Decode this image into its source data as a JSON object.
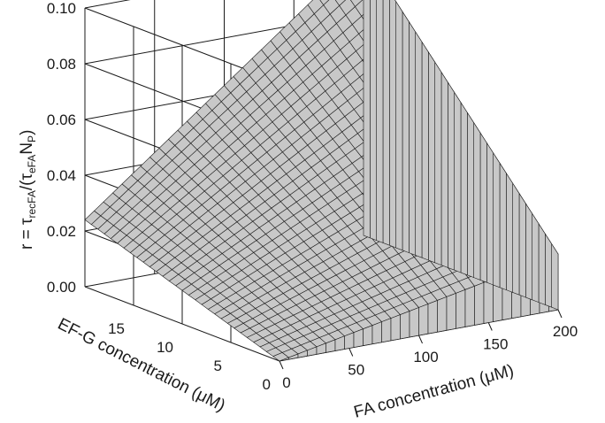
{
  "chart_data": {
    "type": "surface3d",
    "title": "",
    "x_axis": {
      "label": "FA concentration (μM)",
      "ticks": [
        "0",
        "50",
        "100",
        "150",
        "200"
      ],
      "range": [
        0,
        200
      ]
    },
    "y_axis": {
      "label": "EF-G concentration (μM)",
      "ticks": [
        "0",
        "5",
        "10",
        "15"
      ],
      "range": [
        0,
        20
      ]
    },
    "z_axis": {
      "label_main": "r = τ",
      "label_sub1": "recFA",
      "label_mid": "/(τ",
      "label_sub2": "eFA",
      "label_n": "N",
      "label_sub3": "P",
      "label_end": ")",
      "ticks": [
        "0.00",
        "0.02",
        "0.04",
        "0.06",
        "0.08",
        "0.10"
      ],
      "range": [
        0,
        0.1
      ]
    },
    "corner_values": {
      "fa0_efg0": 0.0,
      "fa200_efg0": 0.02,
      "fa0_efg20": 0.024,
      "fa200_efg20": 0.102
    },
    "surface_color": "#c8c8c8",
    "mesh_color": "#1a1a1a",
    "grid": true
  }
}
